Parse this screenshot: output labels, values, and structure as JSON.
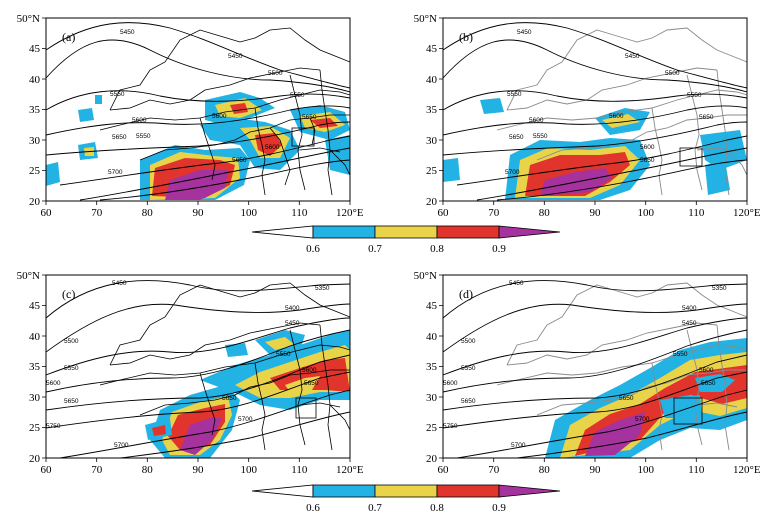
{
  "figure": {
    "panels": [
      {
        "label": "(a)",
        "contour_labels": [
          "5450",
          "5450",
          "5500",
          "5550",
          "5600",
          "5650",
          "5700",
          "5550",
          "5600",
          "5650",
          "5550",
          "5600",
          "5650"
        ],
        "border_style": "black"
      },
      {
        "label": "(b)",
        "contour_labels": [
          "5450",
          "5450",
          "5500",
          "5550",
          "5600",
          "5650",
          "5700",
          "5550",
          "5600",
          "5650",
          "5550",
          "5600",
          "5650"
        ],
        "border_style": "gray"
      },
      {
        "label": "(c)",
        "contour_labels": [
          "5450",
          "5350",
          "5400",
          "5450",
          "5500",
          "5550",
          "5600",
          "5650",
          "5700",
          "5750",
          "5650",
          "5700",
          "5550",
          "5600",
          "5650"
        ],
        "border_style": "black"
      },
      {
        "label": "(d)",
        "contour_labels": [
          "5450",
          "5350",
          "5400",
          "5450",
          "5500",
          "5550",
          "5600",
          "5650",
          "5700",
          "5750",
          "5650",
          "5700",
          "5550",
          "5600",
          "5650"
        ],
        "border_style": "gray"
      }
    ],
    "lat_ticks": [
      "50°N",
      "45",
      "40",
      "35",
      "30",
      "25",
      "20"
    ],
    "lon_ticks": [
      "60",
      "70",
      "80",
      "90",
      "100",
      "110",
      "120°E"
    ],
    "colorbars": [
      {
        "labels": [
          "0.6",
          "0.7",
          "0.8",
          "0.9"
        ]
      },
      {
        "labels": [
          "0.6",
          "0.7",
          "0.8",
          "0.9"
        ]
      }
    ],
    "colors": {
      "cyan": "#22b2e4",
      "yellow": "#e9d449",
      "red": "#e1342c",
      "purple": "#a6329e",
      "gray_border": "#8a8a8a"
    }
  }
}
